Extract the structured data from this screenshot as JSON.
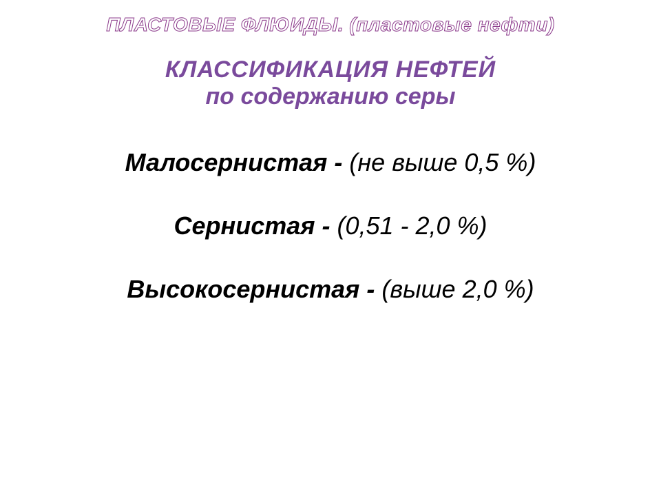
{
  "header": {
    "text": "ПЛАСТОВЫЕ ФЛЮИДЫ. (пластовые нефти)"
  },
  "title": {
    "line1": "КЛАССИФИКАЦИЯ  НЕФТЕЙ",
    "line2": "по содержанию серы"
  },
  "items": [
    {
      "name": "Малосернистая - ",
      "value": " (не выше 0,5 %)"
    },
    {
      "name": "Сернистая - ",
      "value": " (0,51 - 2,0 %)"
    },
    {
      "name": "Высокосернистая - ",
      "value": " (выше 2,0 %)"
    }
  ],
  "colors": {
    "header_stroke": "#8b3a8b",
    "title_color": "#7a4a9c",
    "body_color": "#000000",
    "background": "#ffffff"
  },
  "typography": {
    "header_fontsize": 28,
    "title_fontsize": 34,
    "item_fontsize": 36,
    "font_family": "Arial"
  }
}
